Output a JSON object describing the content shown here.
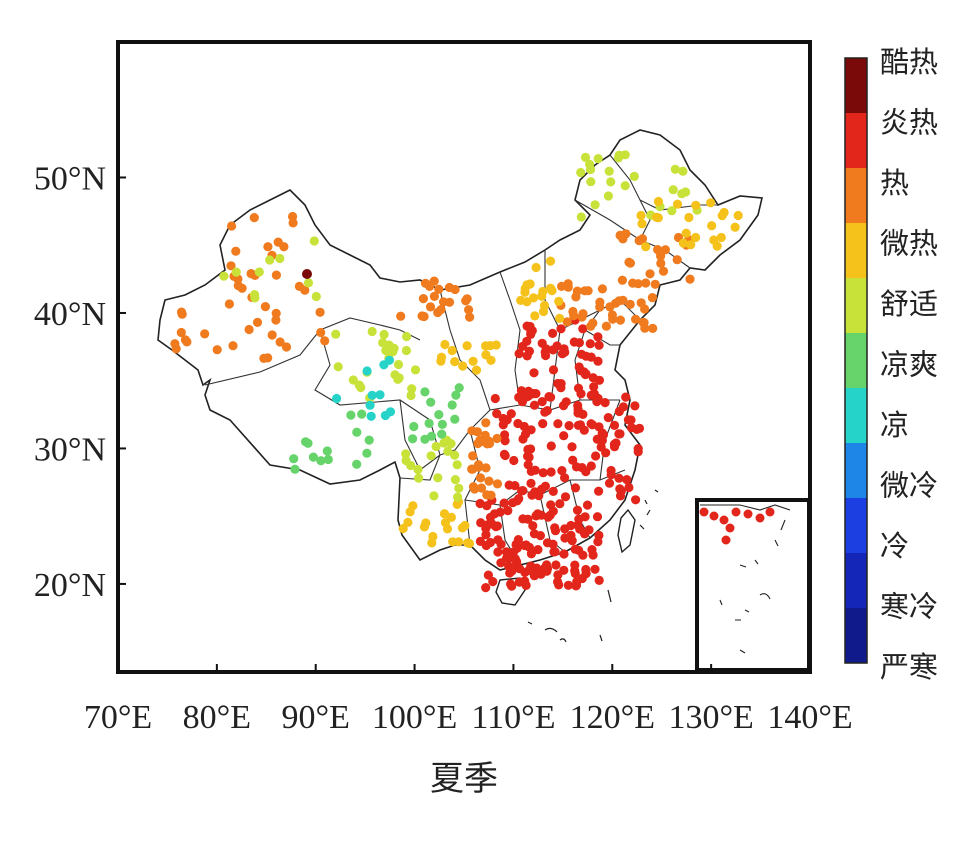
{
  "map": {
    "title": "夏季",
    "lon_ticks": [
      "70°E",
      "80°E",
      "90°E",
      "100°E",
      "110°E",
      "120°E",
      "130°E",
      "140°E"
    ],
    "lat_ticks": [
      "20°N",
      "30°N",
      "40°N",
      "50°N"
    ],
    "extent": {
      "lon": [
        70,
        140
      ],
      "lat": [
        13.5,
        60
      ]
    }
  },
  "colorbar": {
    "labels": [
      "酷热",
      "炎热",
      "热",
      "微热",
      "舒适",
      "凉爽",
      "凉",
      "微冷",
      "冷",
      "寒冷",
      "严寒"
    ],
    "colors": [
      "#7a0a0a",
      "#e3261b",
      "#f07a1e",
      "#f4c21a",
      "#c9e23a",
      "#66d46a",
      "#25d3c9",
      "#1e86e6",
      "#1b3fe0",
      "#1426b8",
      "#101a8a"
    ]
  },
  "colors": {
    "extreme_hot": "#7a0a0a",
    "hot": "#e3261b",
    "warm": "#f07a1e",
    "slightly_warm": "#f4c21a",
    "comfortable": "#c9e23a",
    "cool": "#66d46a",
    "slightly_cool": "#25d3c9"
  }
}
